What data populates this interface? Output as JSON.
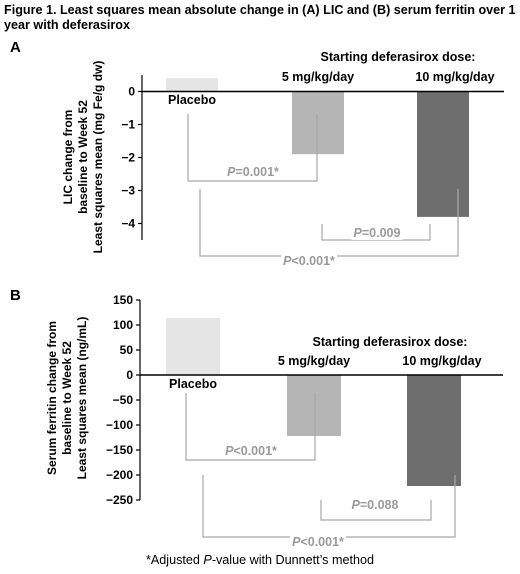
{
  "figure_title": "Figure 1. Least squares mean absolute change in (A) LIC and (B) serum ferritin over 1 year with deferasirox",
  "footnote": {
    "prefix": "*Adjusted ",
    "italic": "P",
    "suffix": "-value with Dunnett’s method"
  },
  "dose_header": "Starting deferasirox dose:",
  "colors": {
    "placebo": "#e5e5e5",
    "dose5": "#b5b5b5",
    "dose10": "#6e6e6e",
    "bracket": "#a6a6a6",
    "pvalue_text": "#9a9a9a"
  },
  "chart_data": [
    {
      "type": "bar",
      "panel_label": "A",
      "categories": [
        "Placebo",
        "5 mg/kg/day",
        "10 mg/kg/day"
      ],
      "values": [
        0.4,
        -1.9,
        -3.8
      ],
      "ylabel_lines": [
        "LIC change from",
        "baseline to Week 52",
        "Least squares mean (mg Fe/g dw)"
      ],
      "ylim": [
        -4.5,
        0.5
      ],
      "yticks": [
        0,
        -1,
        -2,
        -3,
        -4
      ],
      "ytick_labels": [
        "0",
        "−1",
        "−2",
        "−3",
        "−4"
      ],
      "grid": false,
      "comparisons": [
        {
          "from": "Placebo",
          "to": "5 mg/kg/day",
          "p_label": "P",
          "p_text": "=0.001*"
        },
        {
          "from": "5 mg/kg/day",
          "to": "10 mg/kg/day",
          "p_label": "P",
          "p_text": "=0.009"
        },
        {
          "from": "Placebo",
          "to": "10 mg/kg/day",
          "p_label": "P",
          "p_text": "<0.001*"
        }
      ]
    },
    {
      "type": "bar",
      "panel_label": "B",
      "categories": [
        "Placebo",
        "5 mg/kg/day",
        "10 mg/kg/day"
      ],
      "values": [
        114,
        -122,
        -222
      ],
      "ylabel_lines": [
        "Serum ferritin change from",
        "baseline to Week 52",
        "Least squares mean (ng/mL)"
      ],
      "ylim": [
        -250,
        150
      ],
      "yticks": [
        150,
        100,
        50,
        0,
        -50,
        -100,
        -150,
        -200,
        -250
      ],
      "ytick_labels": [
        "150",
        "100",
        "50",
        "0",
        "−50",
        "−100",
        "−150",
        "−200",
        "−250"
      ],
      "grid": false,
      "comparisons": [
        {
          "from": "Placebo",
          "to": "5 mg/kg/day",
          "p_label": "P",
          "p_text": "<0.001*"
        },
        {
          "from": "5 mg/kg/day",
          "to": "10 mg/kg/day",
          "p_label": "P",
          "p_text": "=0.088"
        },
        {
          "from": "Placebo",
          "to": "10 mg/kg/day",
          "p_label": "P",
          "p_text": "<0.001*"
        }
      ]
    }
  ]
}
